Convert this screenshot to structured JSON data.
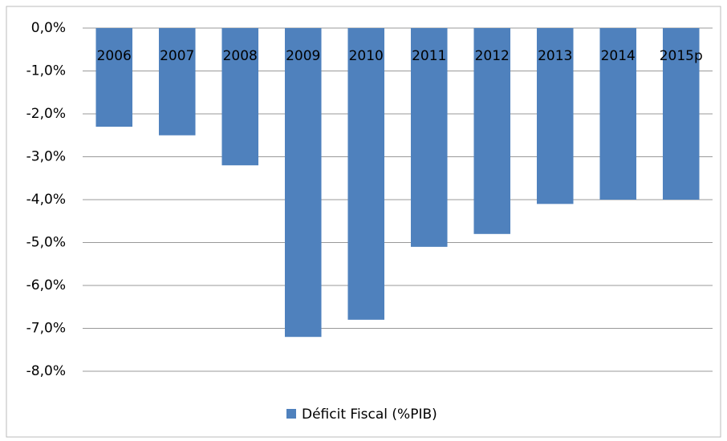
{
  "chart_data": {
    "type": "bar",
    "categories": [
      "2006",
      "2007",
      "2008",
      "2009",
      "2010",
      "2011",
      "2012",
      "2013",
      "2014",
      "2015p"
    ],
    "series": [
      {
        "name": "Déficit Fiscal (%PIB)",
        "color": "#4f81bd",
        "values": [
          -2.3,
          -2.5,
          -3.2,
          -7.2,
          -6.8,
          -5.1,
          -4.8,
          -4.1,
          -4.0,
          -4.0
        ]
      }
    ],
    "ylim": [
      -8,
      0
    ],
    "yticks": [
      {
        "value": 0,
        "label": "0,0%"
      },
      {
        "value": -1,
        "label": "-1,0%"
      },
      {
        "value": -2,
        "label": "-2,0%"
      },
      {
        "value": -3,
        "label": "-3,0%"
      },
      {
        "value": -4,
        "label": "-4,0%"
      },
      {
        "value": -5,
        "label": "-5,0%"
      },
      {
        "value": -6,
        "label": "-6,0%"
      },
      {
        "value": -7,
        "label": "-7,0%"
      },
      {
        "value": -8,
        "label": "-8,0%"
      }
    ],
    "grid": true,
    "legend": "bottom"
  }
}
